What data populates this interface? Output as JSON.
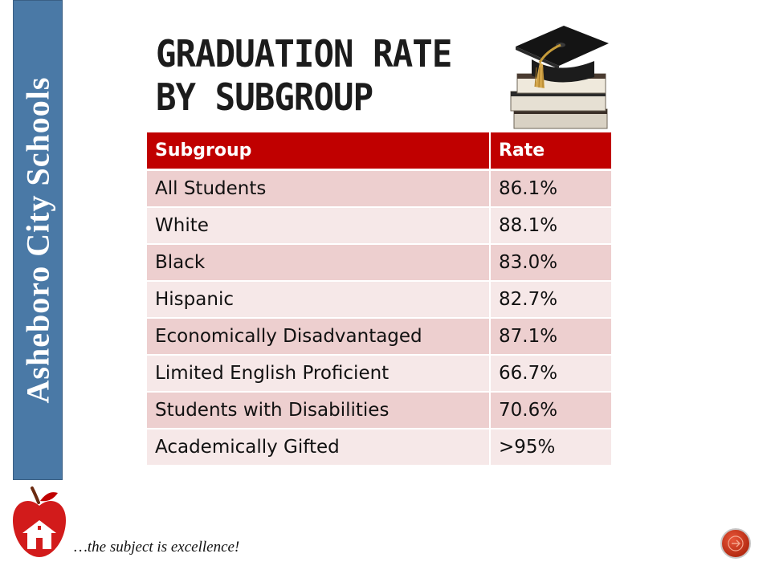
{
  "sidebar": {
    "label": "Asheboro City Schools",
    "color": "#4a79a6"
  },
  "title": {
    "line1": "Graduation Rate",
    "line2": "by Subgroup"
  },
  "table": {
    "header_color": "#c00000",
    "headers": [
      "Subgroup",
      "Rate"
    ],
    "rows": [
      {
        "subgroup": "All Students",
        "rate": "86.1%"
      },
      {
        "subgroup": "White",
        "rate": "88.1%"
      },
      {
        "subgroup": "Black",
        "rate": "83.0%"
      },
      {
        "subgroup": "Hispanic",
        "rate": "82.7%"
      },
      {
        "subgroup": "Economically Disadvantaged",
        "rate": "87.1%"
      },
      {
        "subgroup": "Limited English Proficient",
        "rate": "66.7%"
      },
      {
        "subgroup": "Students with Disabilities",
        "rate": "70.6%"
      },
      {
        "subgroup": "Academically Gifted",
        "rate": ">95%"
      }
    ]
  },
  "footer": {
    "tagline": "…the subject is excellence!",
    "logo_icon": "apple-schoolhouse-icon",
    "nav_icon": "slide-nav-icon"
  },
  "illustration": {
    "icon": "graduation-cap-books-icon"
  }
}
